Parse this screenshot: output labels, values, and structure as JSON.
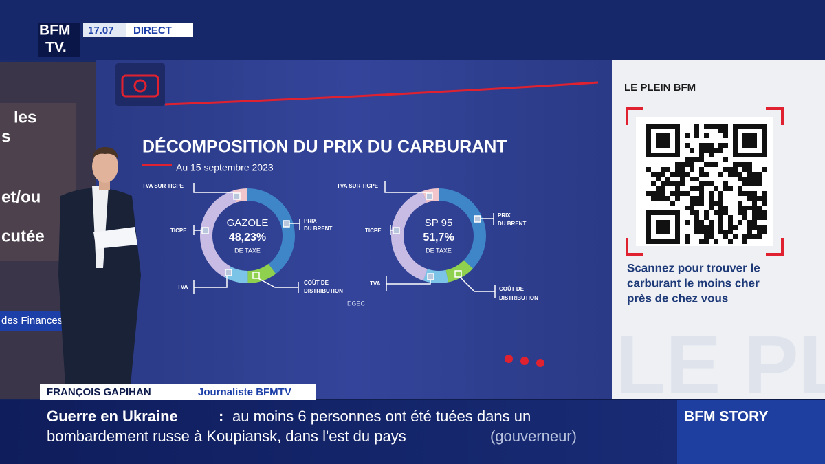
{
  "header": {
    "logo_top": "BFM",
    "logo_bottom": "TV.",
    "time": "17.07",
    "status": "DIRECT"
  },
  "background_screen": {
    "fragments": [
      "les",
      "s",
      "et/ou",
      "cutée",
      "des Finances"
    ]
  },
  "infographic": {
    "title": "DÉCOMPOSITION DU PRIX DU CARBURANT",
    "date": "Au 15 septembre 2023",
    "source": "DGEC",
    "donuts": [
      {
        "name": "GAZOLE",
        "tax": "48,23%",
        "tax_label": "DE TAXE",
        "labels": [
          [
            "TVA SUR TICPE"
          ],
          [
            "TICPE"
          ],
          [
            "TVA"
          ],
          [
            "PRIX",
            "DU BRENT"
          ],
          [
            "COÛT DE",
            "DISTRIBUTION"
          ]
        ]
      },
      {
        "name": "SP 95",
        "tax": "51,7%",
        "tax_label": "DE TAXE",
        "labels": [
          [
            "TVA SUR TICPE"
          ],
          [
            "TICPE"
          ],
          [
            "TVA"
          ],
          [
            "PRIX",
            "DU BRENT"
          ],
          [
            "COÛT DE",
            "DISTRIBUTION"
          ]
        ]
      }
    ]
  },
  "side_panel": {
    "title": "LE PLEIN BFM",
    "caption": [
      "Scannez pour trouver le",
      "carburant le moins cher",
      "près de chez vous"
    ],
    "watermark": "LE PL"
  },
  "lower_third": {
    "name": "FRANÇOIS GAPIHAN",
    "role": "Journaliste BFMTV"
  },
  "ticker": {
    "topic": "Guerre en Ukraine",
    "separator": ":",
    "lines": [
      "au moins 6 personnes ont été tuées dans un",
      "bombardement russe à Koupiansk, dans l'est du pays"
    ],
    "source": "(gouverneur)",
    "brand": "BFM STORY"
  }
}
